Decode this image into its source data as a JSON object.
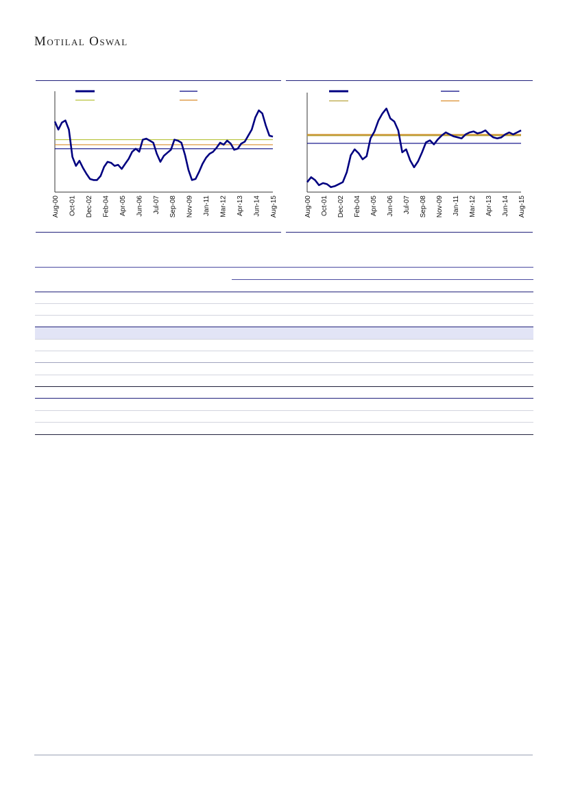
{
  "brand": {
    "first_initial": "M",
    "first_rest": "otilal",
    "second_initial": "O",
    "second_rest": "swal"
  },
  "charts": [
    {
      "type": "line",
      "x_ticks": [
        "Aug-00",
        "Oct-01",
        "Dec-02",
        "Feb-04",
        "Apr-05",
        "Jun-06",
        "Jul-07",
        "Sep-08",
        "Nov-09",
        "Jan-11",
        "Mar-12",
        "Apr-13",
        "Jun-14",
        "Aug-15"
      ],
      "series": [
        {
          "color": "#000080",
          "values": [
            0.7,
            0.62,
            0.69,
            0.71,
            0.62,
            0.35,
            0.26,
            0.31,
            0.24,
            0.18,
            0.13,
            0.12,
            0.12,
            0.16,
            0.25,
            0.3,
            0.29,
            0.26,
            0.27,
            0.23,
            0.28,
            0.33,
            0.4,
            0.43,
            0.4,
            0.52,
            0.53,
            0.51,
            0.49,
            0.38,
            0.3,
            0.36,
            0.39,
            0.42,
            0.52,
            0.51,
            0.49,
            0.37,
            0.22,
            0.12,
            0.13,
            0.2,
            0.28,
            0.34,
            0.38,
            0.4,
            0.44,
            0.49,
            0.47,
            0.51,
            0.48,
            0.42,
            0.43,
            0.48,
            0.5,
            0.56,
            0.62,
            0.74,
            0.81,
            0.78,
            0.66,
            0.56,
            0.55
          ]
        }
      ],
      "reference_lines": [
        {
          "color": "#b7c23a",
          "value": 0.52
        },
        {
          "color": "#d98c2a",
          "value": 0.47
        },
        {
          "color": "#000080",
          "value": 0.43
        }
      ]
    },
    {
      "type": "line",
      "x_ticks": [
        "Aug-00",
        "Oct-01",
        "Dec-02",
        "Feb-04",
        "Apr-05",
        "Jun-06",
        "Jul-07",
        "Sep-08",
        "Nov-09",
        "Jan-11",
        "Mar-12",
        "Apr-13",
        "Jun-14",
        "Aug-15"
      ],
      "series": [
        {
          "color": "#000080",
          "values": [
            0.1,
            0.15,
            0.12,
            0.07,
            0.09,
            0.08,
            0.05,
            0.06,
            0.08,
            0.1,
            0.2,
            0.37,
            0.43,
            0.39,
            0.33,
            0.36,
            0.54,
            0.61,
            0.72,
            0.79,
            0.84,
            0.74,
            0.71,
            0.62,
            0.4,
            0.43,
            0.32,
            0.25,
            0.31,
            0.4,
            0.5,
            0.52,
            0.48,
            0.53,
            0.57,
            0.6,
            0.58,
            0.56,
            0.55,
            0.54,
            0.58,
            0.6,
            0.61,
            0.59,
            0.6,
            0.62,
            0.58,
            0.55,
            0.54,
            0.55,
            0.58,
            0.6,
            0.58,
            0.6,
            0.62
          ]
        }
      ],
      "reference_lines": [
        {
          "color": "#b7a23a",
          "value": 0.57
        },
        {
          "color": "#d98c2a",
          "value": 0.58
        },
        {
          "color": "#000080",
          "value": 0.49
        }
      ]
    }
  ]
}
